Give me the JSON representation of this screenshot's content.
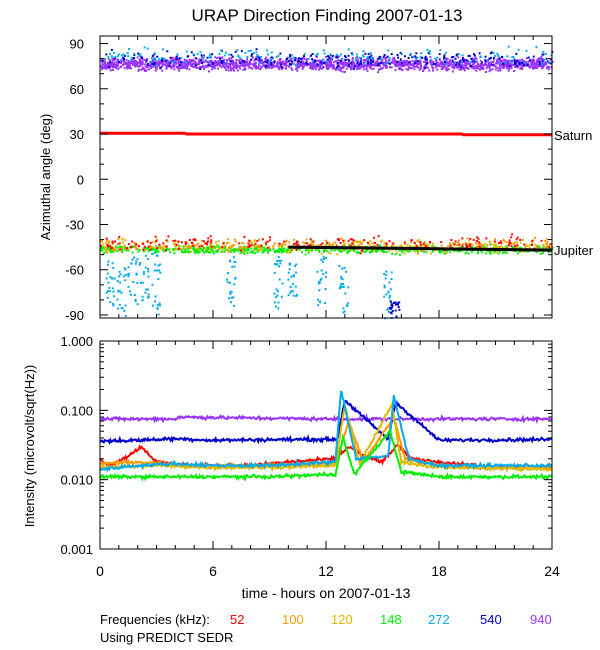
{
  "chart_data": [
    {
      "type": "scatter",
      "title": "URAP Direction Finding  2007-01-13",
      "xlabel": "",
      "ylabel": "Azimuthal angle (deg)",
      "xlim": [
        0,
        24
      ],
      "ylim": [
        -92,
        95
      ],
      "yticks": [
        90,
        60,
        30,
        0,
        -30,
        -60,
        -90
      ],
      "ytick_labels": [
        "90",
        "60",
        "30",
        "0",
        "-30",
        "-60",
        "-90"
      ],
      "reference_lines": [
        {
          "name": "Saturn",
          "color": "#ff0000",
          "x": [
            0,
            4.5,
            4.6,
            19.2,
            19.3,
            24
          ],
          "y": [
            30.5,
            30.5,
            30,
            30,
            29.5,
            29.5
          ]
        },
        {
          "name": "Jupiter",
          "color": "#000000",
          "x": [
            10,
            24
          ],
          "y": [
            -45,
            -47
          ]
        }
      ],
      "series": [
        {
          "name": "940 kHz band",
          "color": "#9933ff",
          "x_range": [
            0,
            24
          ],
          "center": 77,
          "spread": 6,
          "count": 1700
        },
        {
          "name": "540 kHz band",
          "color": "#0000cc",
          "x_range": [
            0,
            24
          ],
          "center": 80,
          "spread": 8,
          "count": 260
        },
        {
          "name": "272 kHz band",
          "color": "#00aaee",
          "x_range": [
            0,
            24
          ],
          "center": 82,
          "spread": 8,
          "count": 160
        },
        {
          "name": "148 kHz low cluster",
          "color": "#00ee00",
          "x_range": [
            0,
            24
          ],
          "center": -46,
          "spread": 4,
          "count": 650
        },
        {
          "name": "120 kHz low cluster",
          "color": "#ddbb00",
          "x_range": [
            0,
            24
          ],
          "center": -44,
          "spread": 6,
          "count": 260
        },
        {
          "name": "100 kHz low cluster",
          "color": "#ff9900",
          "x_range": [
            0,
            24
          ],
          "center": -43,
          "spread": 6,
          "count": 220
        },
        {
          "name": "52 kHz low cluster",
          "color": "#ff0000",
          "x_range": [
            0,
            24
          ],
          "center": -42,
          "spread": 7,
          "count": 200
        }
      ],
      "streaks": [
        {
          "color": "#00aaee",
          "x": 0.5,
          "y_range": [
            -50,
            -88
          ]
        },
        {
          "color": "#00aaee",
          "x": 1.1,
          "y_range": [
            -55,
            -90
          ]
        },
        {
          "color": "#00aaee",
          "x": 1.7,
          "y_range": [
            -50,
            -85
          ]
        },
        {
          "color": "#00aaee",
          "x": 2.3,
          "y_range": [
            -50,
            -80
          ]
        },
        {
          "color": "#00aaee",
          "x": 2.9,
          "y_range": [
            -48,
            -90
          ]
        },
        {
          "color": "#00aaee",
          "x": 6.9,
          "y_range": [
            -50,
            -85
          ]
        },
        {
          "color": "#00aaee",
          "x": 9.4,
          "y_range": [
            -50,
            -85
          ]
        },
        {
          "color": "#00aaee",
          "x": 10.2,
          "y_range": [
            -55,
            -80
          ]
        },
        {
          "color": "#00aaee",
          "x": 11.7,
          "y_range": [
            -50,
            -85
          ]
        },
        {
          "color": "#00aaee",
          "x": 12.9,
          "y_range": [
            -55,
            -90
          ]
        },
        {
          "color": "#00aaee",
          "x": 15.2,
          "y_range": [
            -60,
            -92
          ]
        },
        {
          "color": "#0000cc",
          "x": 15.6,
          "y_range": [
            -80,
            -92
          ]
        }
      ]
    },
    {
      "type": "line",
      "xlabel": "time - hours on 2007-01-13",
      "ylabel": "Intensity (microvolt/sqrt(Hz))",
      "xlim": [
        0,
        24
      ],
      "ylim": [
        0.001,
        1.0
      ],
      "yscale": "log",
      "yticks": [
        1.0,
        0.1,
        0.01,
        0.001
      ],
      "ytick_labels": [
        "1.000",
        "0.100",
        "0.010",
        "0.001"
      ],
      "xticks": [
        0,
        6,
        12,
        18,
        24
      ],
      "xtick_labels": [
        "0",
        "6",
        "12",
        "18",
        "24"
      ],
      "series": [
        {
          "name": "940",
          "color": "#9933ff",
          "x": [
            0,
            4,
            4.2,
            12,
            16,
            24
          ],
          "y": [
            0.075,
            0.075,
            0.08,
            0.075,
            0.075,
            0.075
          ]
        },
        {
          "name": "540",
          "color": "#0000cc",
          "x": [
            0,
            2,
            4,
            6,
            10,
            12.6,
            13.0,
            15.3,
            15.7,
            18,
            24
          ],
          "y": [
            0.036,
            0.037,
            0.039,
            0.037,
            0.038,
            0.038,
            0.14,
            0.038,
            0.13,
            0.037,
            0.038
          ]
        },
        {
          "name": "52",
          "color": "#ff0000",
          "x": [
            0,
            0.5,
            1.5,
            2.2,
            3,
            5,
            8,
            10,
            12.5,
            13.2,
            14,
            15,
            15.8,
            16.5,
            18,
            21,
            24
          ],
          "y": [
            0.02,
            0.016,
            0.022,
            0.03,
            0.018,
            0.016,
            0.016,
            0.018,
            0.02,
            0.03,
            0.022,
            0.018,
            0.032,
            0.02,
            0.018,
            0.015,
            0.015
          ]
        },
        {
          "name": "100",
          "color": "#ff9900",
          "x": [
            0,
            2,
            5,
            8,
            12.5,
            13.2,
            14,
            15.6,
            16.2,
            18,
            21,
            24
          ],
          "y": [
            0.017,
            0.018,
            0.016,
            0.016,
            0.017,
            0.07,
            0.018,
            0.08,
            0.02,
            0.016,
            0.015,
            0.015
          ]
        },
        {
          "name": "120",
          "color": "#ddbb00",
          "x": [
            0,
            3,
            6,
            9,
            12.5,
            13.0,
            13.8,
            15.5,
            16.0,
            18,
            24
          ],
          "y": [
            0.015,
            0.016,
            0.015,
            0.015,
            0.016,
            0.12,
            0.017,
            0.12,
            0.018,
            0.015,
            0.014
          ]
        },
        {
          "name": "272",
          "color": "#00aaee",
          "x": [
            0,
            2,
            4,
            6,
            9,
            12.5,
            12.8,
            13.6,
            15.3,
            15.6,
            16.4,
            18,
            24
          ],
          "y": [
            0.014,
            0.016,
            0.017,
            0.016,
            0.016,
            0.018,
            0.2,
            0.02,
            0.022,
            0.16,
            0.02,
            0.016,
            0.016
          ]
        },
        {
          "name": "148",
          "color": "#00ee00",
          "x": [
            0,
            3,
            6,
            9,
            12.5,
            12.9,
            13.5,
            15.4,
            16.0,
            18,
            24
          ],
          "y": [
            0.011,
            0.011,
            0.011,
            0.011,
            0.012,
            0.04,
            0.012,
            0.05,
            0.013,
            0.011,
            0.011
          ]
        }
      ]
    }
  ],
  "footer": {
    "frequencies_label": "Frequencies (kHz):",
    "frequencies": [
      {
        "value": "52",
        "color": "#ff0000"
      },
      {
        "value": "100",
        "color": "#ff9900"
      },
      {
        "value": "120",
        "color": "#ddbb00"
      },
      {
        "value": "148",
        "color": "#00ee00"
      },
      {
        "value": "272",
        "color": "#00aaee"
      },
      {
        "value": "540",
        "color": "#0000cc"
      },
      {
        "value": "940",
        "color": "#9933ff"
      }
    ],
    "source_note": "Using PREDICT SEDR"
  }
}
